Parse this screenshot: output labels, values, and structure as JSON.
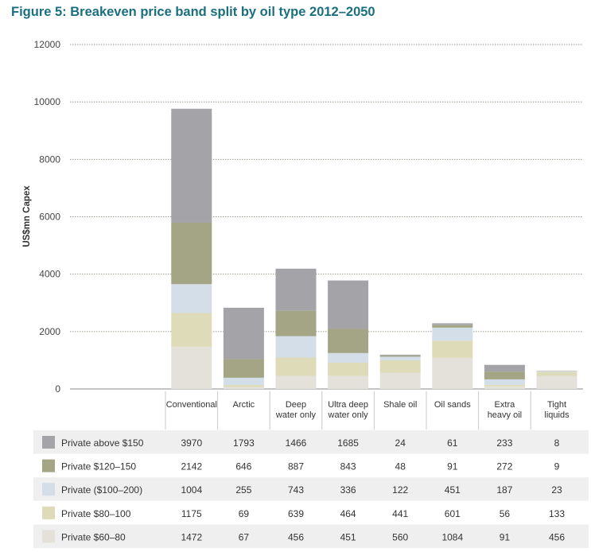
{
  "title": "Figure 5: Breakeven price band split by oil type 2012–2050",
  "chart_data": {
    "type": "bar",
    "stacked": true,
    "ylabel": "US$mn Capex",
    "ylim": [
      0,
      12000
    ],
    "yticks": [
      0,
      2000,
      4000,
      6000,
      8000,
      10000,
      12000
    ],
    "grid": true,
    "categories": [
      [
        "Conventional"
      ],
      [
        "Arctic"
      ],
      [
        "Deep",
        "water only"
      ],
      [
        "Ultra deep",
        "water only"
      ],
      [
        "Shale oil"
      ],
      [
        "Oil sands"
      ],
      [
        "Extra",
        "heavy oil"
      ],
      [
        "Tight",
        "liquids"
      ]
    ],
    "series": [
      {
        "name": "Private $60–80",
        "color": "#e3e1da",
        "values": [
          1472,
          67,
          456,
          451,
          560,
          1084,
          91,
          456
        ]
      },
      {
        "name": "Private $80–100",
        "color": "#dddbb8",
        "values": [
          1175,
          69,
          639,
          464,
          441,
          601,
          56,
          133
        ]
      },
      {
        "name": "Private ($100–200)",
        "color": "#d3dee9",
        "values": [
          1004,
          255,
          743,
          336,
          122,
          451,
          187,
          23
        ]
      },
      {
        "name": "Private $120–150",
        "color": "#a3a585",
        "values": [
          2142,
          646,
          887,
          843,
          48,
          91,
          272,
          9
        ]
      },
      {
        "name": "Private above $150",
        "color": "#a3a3a8",
        "values": [
          3970,
          1793,
          1466,
          1685,
          24,
          61,
          233,
          8
        ]
      }
    ]
  }
}
